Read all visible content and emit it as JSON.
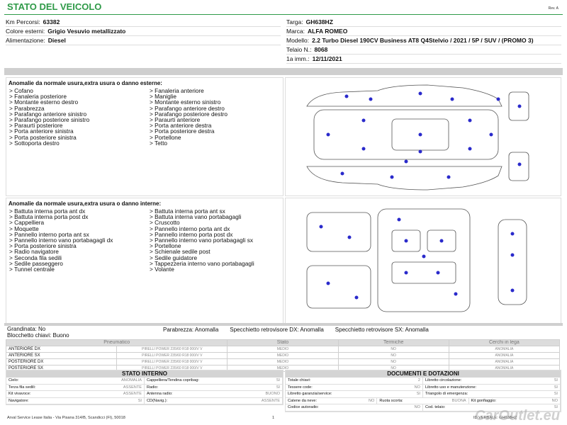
{
  "header": {
    "title": "STATO DEL VEICOLO",
    "revision": "Rev. A"
  },
  "vehicle": {
    "left": [
      {
        "label": "Km Percorsi:",
        "value": "63382"
      },
      {
        "label": "Colore esterni:",
        "value": "Grigio Vesuvio metallizzato"
      },
      {
        "label": "Alimentazione:",
        "value": "Diesel"
      }
    ],
    "right": [
      {
        "label": "Targa:",
        "value": "GH638HZ"
      },
      {
        "label": "Marca:",
        "value": "ALFA ROMEO"
      },
      {
        "label": "Modello:",
        "value": "2.2 Turbo Diesel 190CV Business AT8 Q4Stelvio / 2021 / 5P / SUV / (PROMO 3)"
      },
      {
        "label": "Telaio N.:",
        "value": "8068"
      },
      {
        "label": "1a imm.:",
        "value": "12/11/2021"
      }
    ]
  },
  "exterior": {
    "heading": "Anomalie da normale usura,extra usura o danno esterne:",
    "columns": [
      [
        "> Cofano",
        "> Fanaleria posteriore",
        "> Montante esterno destro",
        "> Parabrezza",
        "> Parafango anteriore sinistro",
        "> Parafango posteriore sinistro",
        "> Paraurti posteriore",
        "> Porta anteriore sinistra",
        "> Porta posteriore sinistra",
        "> Sottoporta destro"
      ],
      [
        "> Fanaleria anteriore",
        "> Maniglie",
        "> Montante esterno sinistro",
        "> Parafango anteriore destro",
        "> Parafango posteriore destro",
        "> Paraurti anteriore",
        "> Porta anteriore destra",
        "> Porta posteriore destra",
        "> Portellone",
        "> Tetto"
      ]
    ]
  },
  "interior": {
    "heading": "Anomalie da normale usura,extra usura o danno interne:",
    "columns": [
      [
        "> Battuta interna porta ant dx",
        "> Battuta interna porta post dx",
        "> Cappelliera",
        "> Moquette",
        "> Pannello interno porta ant sx",
        "> Pannello interno vano portabagagli dx",
        "> Porta posteriore sinistra",
        "> Radio navigatore",
        "> Seconda fila sedili",
        "> Sedile passeggero",
        "> Tunnel centrale"
      ],
      [
        "> Battuta interna porta ant sx",
        "> Battuta interna vano portabagagli",
        "> Cruscotto",
        "> Pannello interno porta ant dx",
        "> Pannello interno porta post dx",
        "> Pannello interno vano portabagagli sx",
        "> Portellone",
        "> Schienale sedile post",
        "> Sedile guidatore",
        "> Tappezzeria interno vano portabagagli",
        "> Volante"
      ]
    ]
  },
  "conditions": {
    "left": [
      "Grandinata: No",
      "Blocchetto chiavi: Buono"
    ],
    "right": [
      "Parabrezza: Anomalla",
      "Specchietto retrovisore DX: Anomalla",
      "Specchietto retrovisore SX: Anomalla"
    ]
  },
  "tyres": {
    "header": [
      "Pneumatico",
      "Stato",
      "Termiche",
      "Cerchi in lega"
    ],
    "rows": [
      [
        "ANTERIORE DX",
        "PIRELLI POWER 235/60 R18 000/V V",
        "MEDIO",
        "NO",
        "ANOMALIA"
      ],
      [
        "ANTERIORE SX",
        "PIRELLI POWER 235/60 R18 000/V V",
        "MEDIO",
        "NO",
        "ANOMALIA"
      ],
      [
        "POSTERIORE DX",
        "PIRELLI POWER 235/60 R18 000/V V",
        "MEDIO",
        "NO",
        "ANOMALIA"
      ],
      [
        "POSTERIORE SX",
        "PIRELLI POWER 235/60 R18 000/V V",
        "MEDIO",
        "NO",
        "ANOMALIA"
      ]
    ]
  },
  "internal_state": {
    "title": "STATO INTERNO",
    "rows": [
      [
        {
          "label": "Cielo:",
          "value": "ANOMALIA"
        },
        {
          "label": "Cappelliera/Tendina copribag:",
          "value": "SI"
        }
      ],
      [
        {
          "label": "Terza fila sedili:",
          "value": "ASSENTE"
        },
        {
          "label": "Radio:",
          "value": "SI"
        }
      ],
      [
        {
          "label": "Kit vivavoce:",
          "value": "ASSENTE"
        },
        {
          "label": "Antenna radio:",
          "value": "BUONO"
        }
      ],
      [
        {
          "label": "Navigatore:",
          "value": "SI"
        },
        {
          "label": "CD(Navig.):",
          "value": "ASSENTE"
        }
      ]
    ]
  },
  "documents": {
    "title": "DOCUMENTI E DOTAZIONI",
    "rows": [
      [
        {
          "label": "Totale chiavi:",
          "value": "2"
        },
        {
          "label": "Libretto circolazione:",
          "value": "SI"
        }
      ],
      [
        {
          "label": "Tessere code:",
          "value": "NO"
        },
        {
          "label": "Libretto uso e manutenzione:",
          "value": "SI"
        }
      ],
      [
        {
          "label": "Libretto garanzia/service:",
          "value": "SI"
        },
        {
          "label": "Triangolo di emergenza:",
          "value": "SI"
        }
      ],
      [
        {
          "label": "Catene da neve:",
          "value": "NO"
        },
        {
          "label": "Ruota scorta:",
          "value": "BUONA"
        },
        {
          "label": "Kit gonfiaggio:",
          "value": "NO"
        }
      ],
      [
        {
          "label": "Codice autoradio:",
          "value": "NO"
        },
        {
          "label": "Cod. telaio:",
          "value": "SI"
        }
      ]
    ]
  },
  "footer": {
    "address": "Arval Service Lease Italia - Via Pisana 314/B, Scandicci (FI), 50018",
    "page": "1",
    "id": "ID VERBALE: GH638HZ",
    "watermark": "CarOutlet.eu"
  }
}
